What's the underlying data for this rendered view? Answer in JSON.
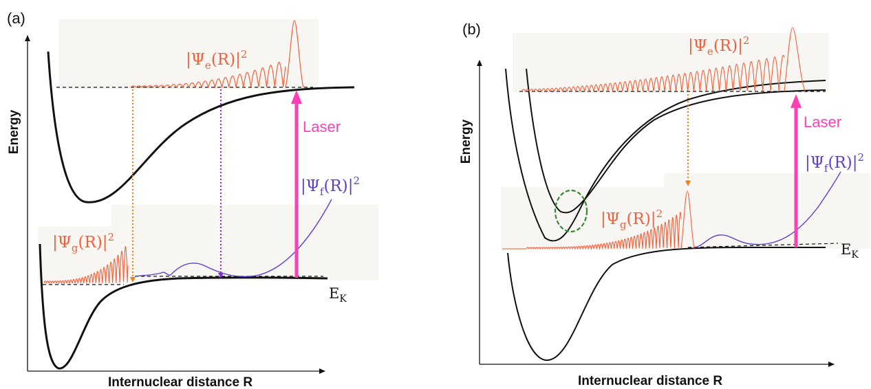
{
  "panel_a": {
    "label": "(a)",
    "y_axis_label": "Energy",
    "x_axis_label": "Internuclear  distance  R",
    "psi_e": {
      "base": "|Ψ",
      "sub": "e",
      "tail": "(R)|",
      "sup": "2"
    },
    "psi_g": {
      "base": "|Ψ",
      "sub": "g",
      "tail": "(R)|",
      "sup": "2"
    },
    "psi_f": {
      "base": "|Ψ",
      "sub": "f",
      "tail": "(R)|",
      "sup": "2"
    },
    "laser": "Laser",
    "ek": {
      "base": "E",
      "sub": "K"
    }
  },
  "panel_b": {
    "label": "(b)",
    "y_axis_label": "Energy",
    "x_axis_label": "Internuclear  distance  R",
    "psi_e": {
      "base": "|Ψ",
      "sub": "e",
      "tail": "(R)|",
      "sup": "2"
    },
    "psi_g": {
      "base": "|Ψ",
      "sub": "g",
      "tail": "(R)|",
      "sup": "2"
    },
    "psi_f": {
      "base": "|Ψ",
      "sub": "f",
      "tail": "(R)|",
      "sup": "2"
    },
    "laser": "Laser",
    "ek": {
      "base": "E",
      "sub": "K"
    }
  },
  "colors": {
    "excited_wavefunction": "#f2603a",
    "final_wavefunction": "#5b3fd0",
    "laser_arrow": "#ff3fb4",
    "emission_arrow": "#f08018",
    "absorption_arrow": "#8a2be2",
    "crossing_marker": "#2e8b2e",
    "background_box": "#f7f6f2"
  }
}
